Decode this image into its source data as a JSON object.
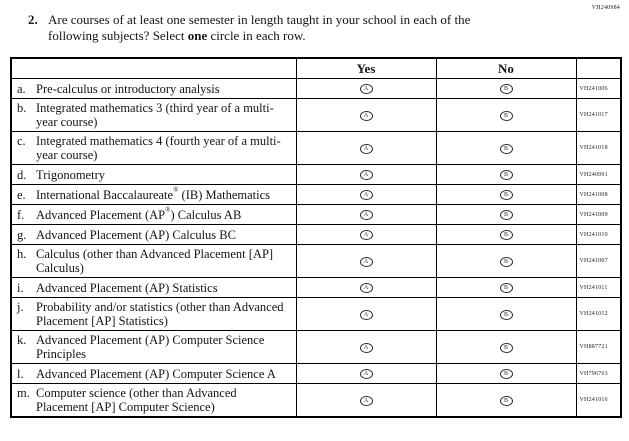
{
  "page": {
    "form_code": "VH240984",
    "question": {
      "number": "2.",
      "text_before_bold": "Are courses of at least one semester in length taught in your school in each of the following subjects? Select ",
      "bold_word": "one",
      "text_after_bold": " circle in each row."
    },
    "table": {
      "col_yes": "Yes",
      "col_no": "No",
      "yes_oval_letter": "A",
      "no_oval_letter": "B",
      "rows": [
        {
          "letter": "a.",
          "label": "Pre-calculus or introductory analysis",
          "code": "VH241006"
        },
        {
          "letter": "b.",
          "label": "Integrated mathematics 3 (third year of a multi-year course)",
          "code": "VH241017"
        },
        {
          "letter": "c.",
          "label": "Integrated mathematics 4 (fourth year of a multi-year course)",
          "code": "VH241018"
        },
        {
          "letter": "d.",
          "label": "Trigonometry",
          "code": "VH240991"
        },
        {
          "letter": "e.",
          "label": "International Baccalaureate® (IB) Mathematics",
          "code": "VH241008"
        },
        {
          "letter": "f.",
          "label": "Advanced Placement (AP®) Calculus AB",
          "code": "VH241009"
        },
        {
          "letter": "g.",
          "label": "Advanced Placement (AP) Calculus BC",
          "code": "VH241010"
        },
        {
          "letter": "h.",
          "label": "Calculus (other than Advanced Placement [AP] Calculus)",
          "code": "VH241007"
        },
        {
          "letter": "i.",
          "label": "Advanced Placement (AP) Statistics",
          "code": "VH241011"
        },
        {
          "letter": "j.",
          "label": "Probability and/or statistics (other than Advanced Placement [AP] Statistics)",
          "code": "VH241012"
        },
        {
          "letter": "k.",
          "label": "Advanced Placement (AP) Computer Science Principles",
          "code": "VH887721"
        },
        {
          "letter": "l.",
          "label": "Advanced Placement (AP) Computer Science A",
          "code": "VH796763"
        },
        {
          "letter": "m.",
          "label": "Computer science (other than Advanced Placement [AP] Computer Science)",
          "code": "VH241016"
        }
      ]
    }
  }
}
